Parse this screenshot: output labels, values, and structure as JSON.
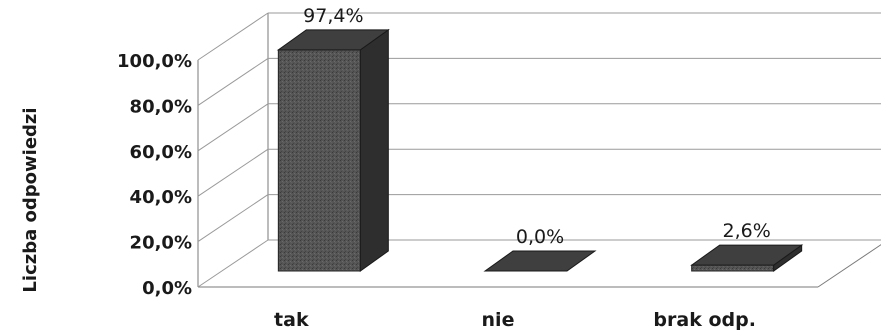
{
  "chart_data": {
    "type": "bar",
    "categories": [
      "tak",
      "nie",
      "brak odp."
    ],
    "values": [
      97.4,
      0.0,
      2.6
    ],
    "data_labels": [
      "97,4%",
      "0,0%",
      "2,6%"
    ],
    "ylabel": "Liczba odpowiedzi",
    "yticks": [
      "0,0%",
      "20,0%",
      "40,0%",
      "60,0%",
      "80,0%",
      "100,0%"
    ],
    "ytick_values": [
      0,
      20,
      40,
      60,
      80,
      100
    ],
    "ylim": [
      0,
      100
    ],
    "grid": true,
    "legend": "none",
    "bar_color": "#4a4a4a"
  }
}
